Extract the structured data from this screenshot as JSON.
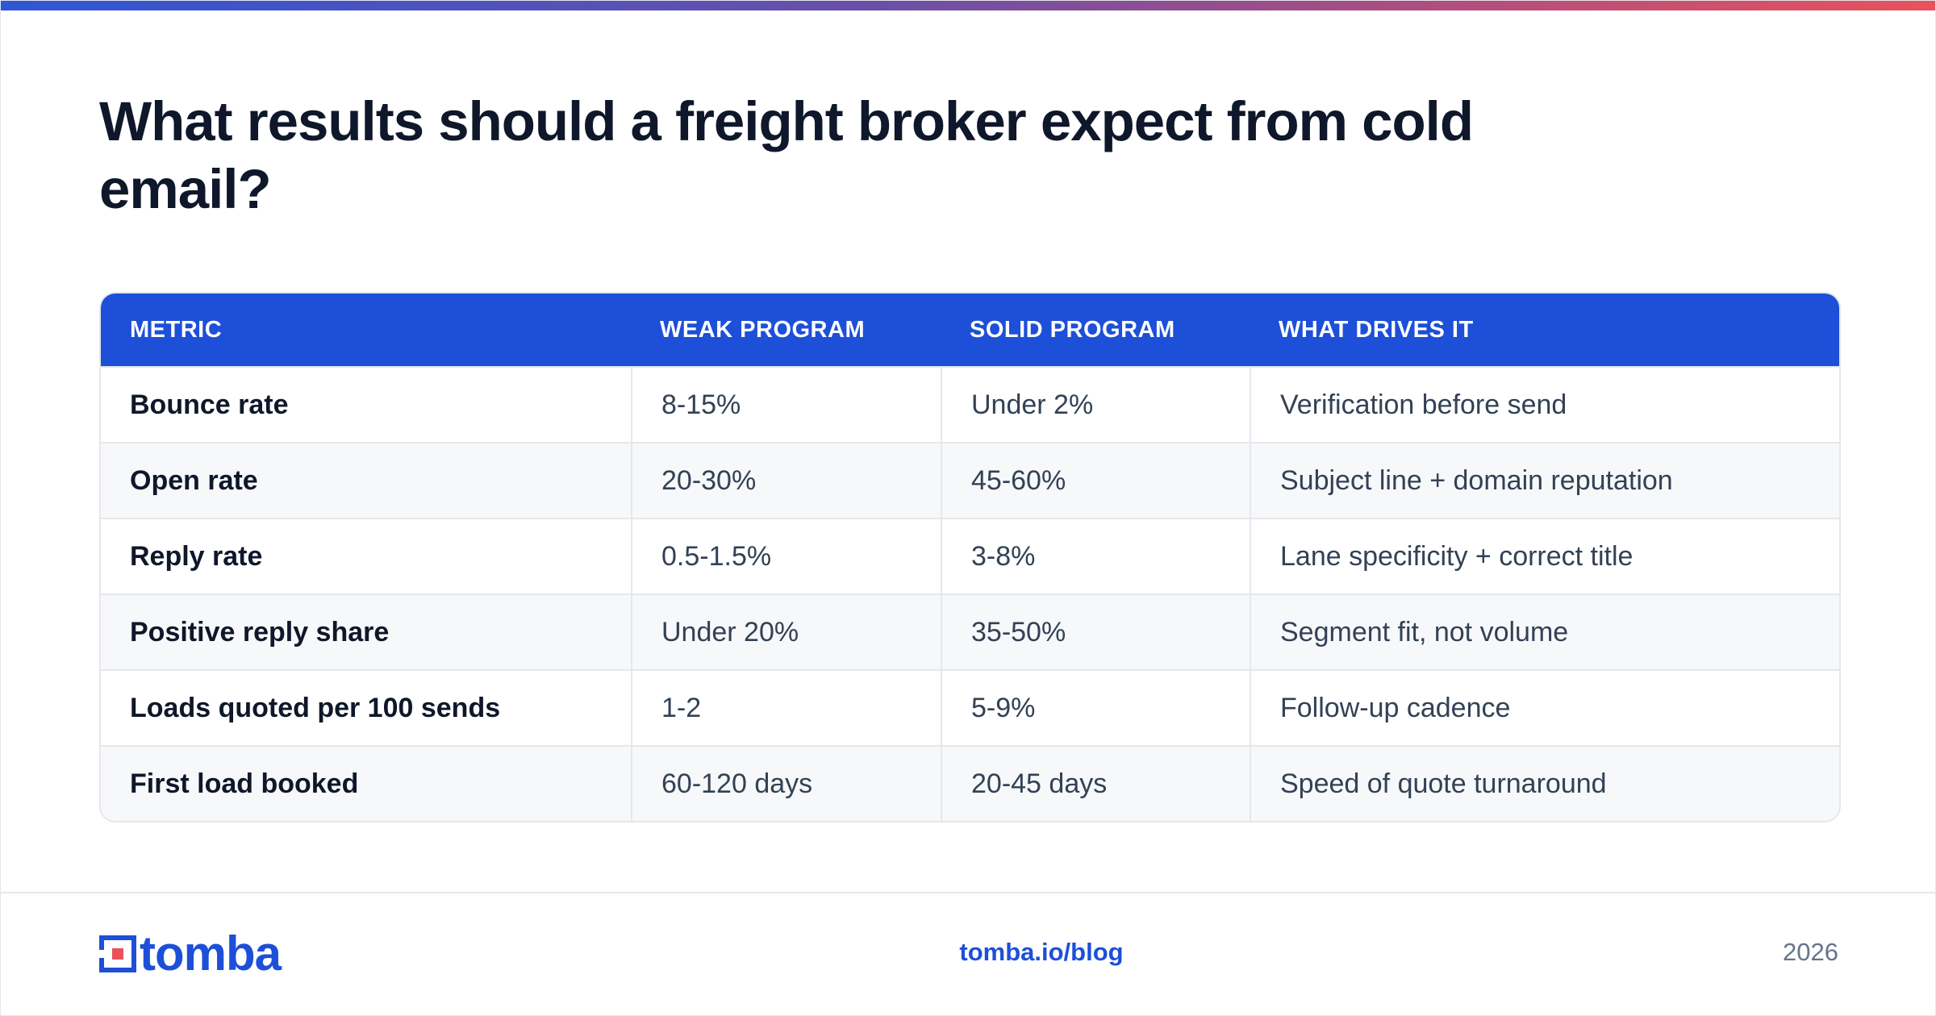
{
  "headline": "What results should a freight broker expect from cold email?",
  "table": {
    "headers": [
      "METRIC",
      "WEAK PROGRAM",
      "SOLID PROGRAM",
      "WHAT DRIVES IT"
    ],
    "rows": [
      [
        "Bounce rate",
        "8-15%",
        "Under 2%",
        "Verification before send"
      ],
      [
        "Open rate",
        "20-30%",
        "45-60%",
        "Subject line + domain reputation"
      ],
      [
        "Reply rate",
        "0.5-1.5%",
        "3-8%",
        "Lane specificity + correct title"
      ],
      [
        "Positive reply share",
        "Under 20%",
        "35-50%",
        "Segment fit, not volume"
      ],
      [
        "Loads quoted per 100 sends",
        "1-2",
        "5-9%",
        "Follow-up cadence"
      ],
      [
        "First load booked",
        "60-120 days",
        "20-45 days",
        "Speed of quote turnaround"
      ]
    ]
  },
  "footer": {
    "logo_text": "tomba",
    "logo_icon": "tomba-logo-icon",
    "url": "tomba.io/blog",
    "year": "2026"
  },
  "colors": {
    "accent": "#1d4fd8",
    "header_text": "#ffffff",
    "title_text": "#0f172a",
    "alt_row": "#f7f8fa",
    "logo_red": "#e8525c"
  }
}
